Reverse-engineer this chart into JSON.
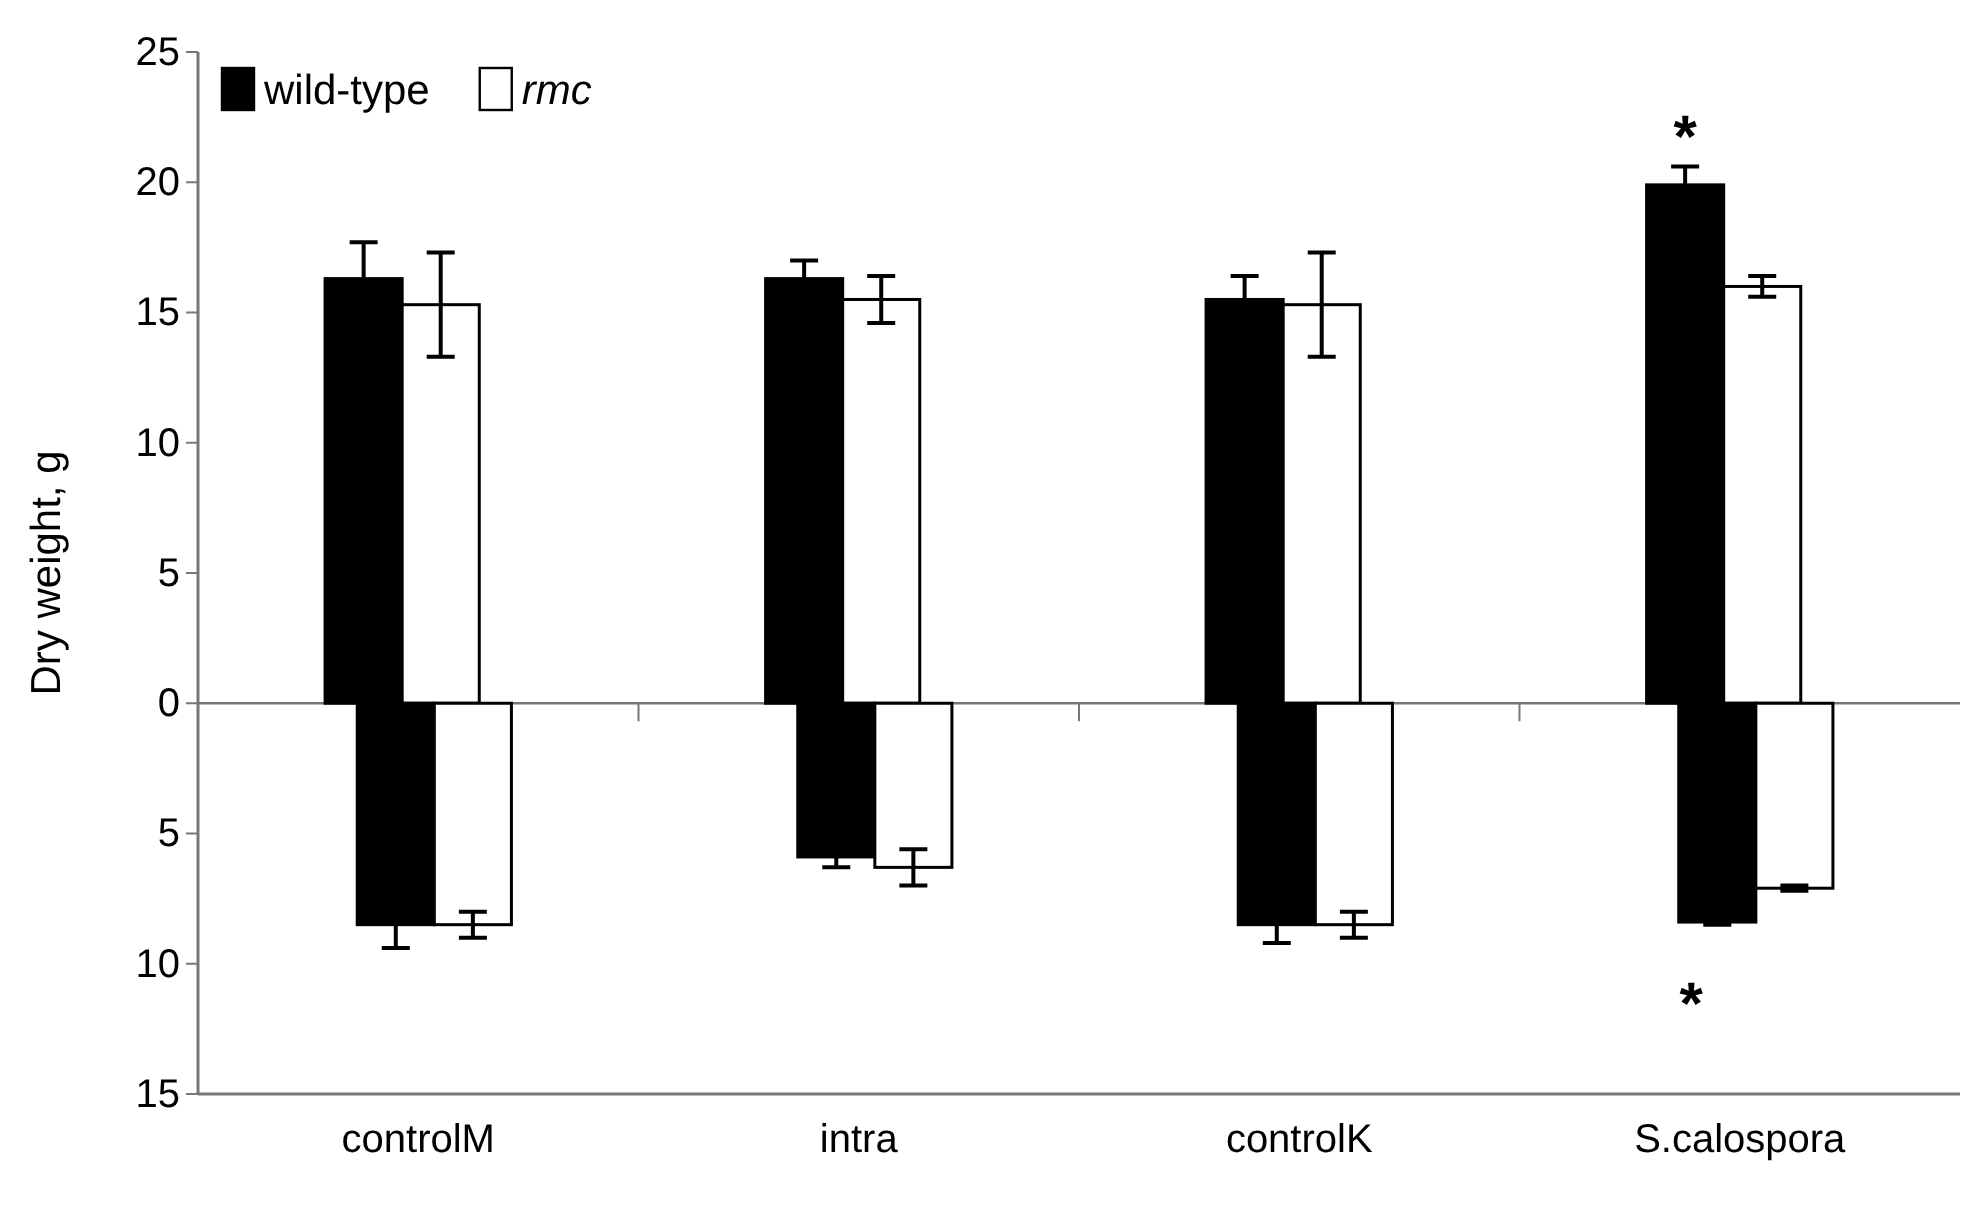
{
  "chart_data": {
    "type": "bar",
    "ylabel": "Dry weight, g",
    "categories": [
      "controlM",
      "intra",
      "controlK",
      "S.calospora"
    ],
    "series": [
      {
        "name": "wild-type",
        "color": "#000000",
        "values": [
          16.3,
          16.3,
          15.5,
          19.9
        ],
        "errors": [
          1.4,
          0.7,
          0.9,
          0.7
        ]
      },
      {
        "name": "rmc",
        "color": "#ffffff",
        "values": [
          15.3,
          15.5,
          15.3,
          16.0
        ],
        "errors": [
          2.0,
          0.9,
          2.0,
          0.4
        ]
      },
      {
        "color": "#000000",
        "values": [
          -8.5,
          -5.9,
          -8.5,
          -8.4
        ],
        "errors": [
          0.9,
          0.4,
          0.7,
          0.1
        ]
      },
      {
        "color": "#ffffff",
        "values": [
          -8.5,
          -6.3,
          -8.5,
          -7.1
        ],
        "errors": [
          0.5,
          0.7,
          0.5,
          0.1
        ]
      }
    ],
    "ylim": [
      -15,
      25
    ],
    "yticks": [
      {
        "value": -15,
        "label": "15"
      },
      {
        "value": -10,
        "label": "10"
      },
      {
        "value": -5,
        "label": "5"
      },
      0,
      5,
      10,
      15,
      20,
      25
    ],
    "legend": "top left",
    "annotations": [
      "*",
      {
        "text": "*",
        "x": "S.calospora",
        "y": -8.4
      }
    ]
  }
}
